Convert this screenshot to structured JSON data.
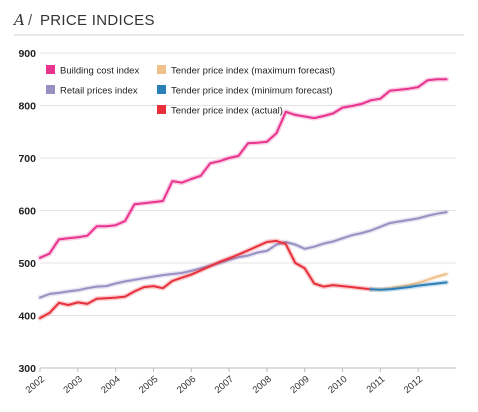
{
  "header": {
    "panel_letter": "A",
    "separator": "/",
    "title": "PRICE INDICES"
  },
  "chart_data": {
    "type": "line",
    "title": "PRICE INDICES",
    "xlabel": "",
    "ylabel": "",
    "xlim": [
      2002,
      2013.0
    ],
    "ylim": [
      300,
      900
    ],
    "yticks": [
      300,
      400,
      500,
      600,
      700,
      800,
      900
    ],
    "xticks": [
      "2002",
      "2003",
      "2004",
      "2005",
      "2006",
      "2007",
      "2008",
      "2009",
      "2010",
      "2011",
      "2012"
    ],
    "grid": true,
    "legend_position": "top",
    "series": [
      {
        "name": "Building cost index",
        "color": "#e8338f",
        "x": [
          2002.0,
          2002.25,
          2002.5,
          2002.75,
          2003.0,
          2003.25,
          2003.5,
          2003.75,
          2004.0,
          2004.25,
          2004.5,
          2004.75,
          2005.0,
          2005.25,
          2005.5,
          2005.75,
          2006.0,
          2006.25,
          2006.5,
          2006.75,
          2007.0,
          2007.25,
          2007.5,
          2007.75,
          2008.0,
          2008.25,
          2008.5,
          2008.75,
          2009.0,
          2009.25,
          2009.5,
          2009.75,
          2010.0,
          2010.25,
          2010.5,
          2010.75,
          2011.0,
          2011.25,
          2011.5,
          2011.75,
          2012.0,
          2012.25,
          2012.5,
          2012.75
        ],
        "values": [
          510,
          518,
          545,
          547,
          549,
          552,
          570,
          570,
          572,
          580,
          612,
          614,
          616,
          618,
          656,
          653,
          660,
          666,
          690,
          694,
          700,
          704,
          728,
          729,
          731,
          747,
          788,
          782,
          779,
          776,
          780,
          785,
          796,
          799,
          803,
          810,
          813,
          828,
          830,
          832,
          835,
          848,
          850,
          850
        ]
      },
      {
        "name": "Retail prices index",
        "color": "#9a8fc3",
        "x": [
          2002.0,
          2002.25,
          2002.5,
          2002.75,
          2003.0,
          2003.25,
          2003.5,
          2003.75,
          2004.0,
          2004.25,
          2004.5,
          2004.75,
          2005.0,
          2005.25,
          2005.5,
          2005.75,
          2006.0,
          2006.25,
          2006.5,
          2006.75,
          2007.0,
          2007.25,
          2007.5,
          2007.75,
          2008.0,
          2008.25,
          2008.5,
          2008.75,
          2009.0,
          2009.25,
          2009.5,
          2009.75,
          2010.0,
          2010.25,
          2010.5,
          2010.75,
          2011.0,
          2011.25,
          2011.5,
          2011.75,
          2012.0,
          2012.25,
          2012.5,
          2012.75
        ],
        "values": [
          434,
          441,
          443,
          446,
          448,
          452,
          455,
          456,
          461,
          465,
          468,
          471,
          474,
          477,
          479,
          481,
          485,
          490,
          495,
          500,
          506,
          511,
          514,
          520,
          523,
          535,
          540,
          535,
          527,
          531,
          537,
          541,
          547,
          553,
          557,
          562,
          569,
          576,
          579,
          582,
          585,
          590,
          594,
          597
        ]
      },
      {
        "name": "Tender price index (actual)",
        "color": "#e8303a",
        "x": [
          2002.0,
          2002.25,
          2002.5,
          2002.75,
          2003.0,
          2003.25,
          2003.5,
          2003.75,
          2004.0,
          2004.25,
          2004.5,
          2004.75,
          2005.0,
          2005.25,
          2005.5,
          2005.75,
          2006.0,
          2006.25,
          2006.5,
          2006.75,
          2007.0,
          2007.25,
          2007.5,
          2007.75,
          2008.0,
          2008.25,
          2008.5,
          2008.75,
          2009.0,
          2009.25,
          2009.5,
          2009.75,
          2010.0,
          2010.25,
          2010.5,
          2010.75
        ],
        "values": [
          395,
          405,
          424,
          420,
          425,
          422,
          432,
          433,
          434,
          436,
          446,
          454,
          456,
          452,
          466,
          472,
          478,
          486,
          494,
          502,
          509,
          516,
          524,
          532,
          540,
          542,
          536,
          500,
          490,
          461,
          455,
          458,
          456,
          454,
          452,
          450
        ]
      },
      {
        "name": "Tender price index (maximum forecast)",
        "color": "#f0c08a",
        "x": [
          2010.75,
          2011.0,
          2011.25,
          2011.5,
          2011.75,
          2012.0,
          2012.25,
          2012.5,
          2012.75
        ],
        "values": [
          450,
          450,
          452,
          455,
          458,
          462,
          468,
          474,
          479
        ]
      },
      {
        "name": "Tender price index (minimum forecast)",
        "color": "#2a7fb8",
        "x": [
          2010.75,
          2011.0,
          2011.25,
          2011.5,
          2011.75,
          2012.0,
          2012.25,
          2012.5,
          2012.75
        ],
        "values": [
          450,
          449,
          450,
          452,
          454,
          457,
          459,
          461,
          463
        ]
      }
    ]
  }
}
